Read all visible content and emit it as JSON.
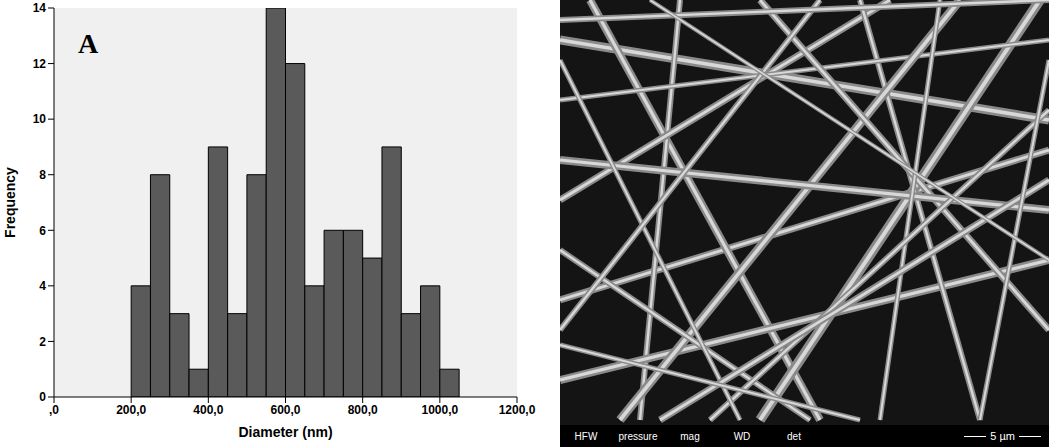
{
  "chart_data": {
    "type": "histogram",
    "x_label": "Diameter (nm)",
    "y_label": "Frequency",
    "annotations": [
      "A"
    ],
    "bins": [
      200,
      250,
      300,
      350,
      400,
      450,
      500,
      550,
      600,
      650,
      700,
      750,
      800,
      850,
      900,
      950,
      1000,
      1050
    ],
    "values": [
      4,
      8,
      3,
      1,
      9,
      3,
      8,
      14,
      12,
      4,
      6,
      6,
      5,
      9,
      3,
      4,
      1
    ],
    "color": "#5a5a5a",
    "xlim": [
      0,
      1200
    ],
    "xticks": [
      {
        "value": 0,
        "label": ",0"
      },
      {
        "value": 200,
        "label": "200,0"
      },
      {
        "value": 400,
        "label": "400,0"
      },
      {
        "value": 600,
        "label": "600,0"
      },
      {
        "value": 800,
        "label": "800,0"
      },
      {
        "value": 1000,
        "label": "1000,0"
      },
      {
        "value": 1200,
        "label": "1200,0"
      }
    ],
    "ylim": [
      0,
      14
    ],
    "yticks": [
      0,
      2,
      4,
      6,
      8,
      10,
      12,
      14
    ],
    "grid": false
  },
  "micrograph": {
    "footer_labels": [
      "HFW",
      "pressure",
      "mag",
      "WD",
      "det"
    ],
    "scale_bar": "5 µm"
  }
}
